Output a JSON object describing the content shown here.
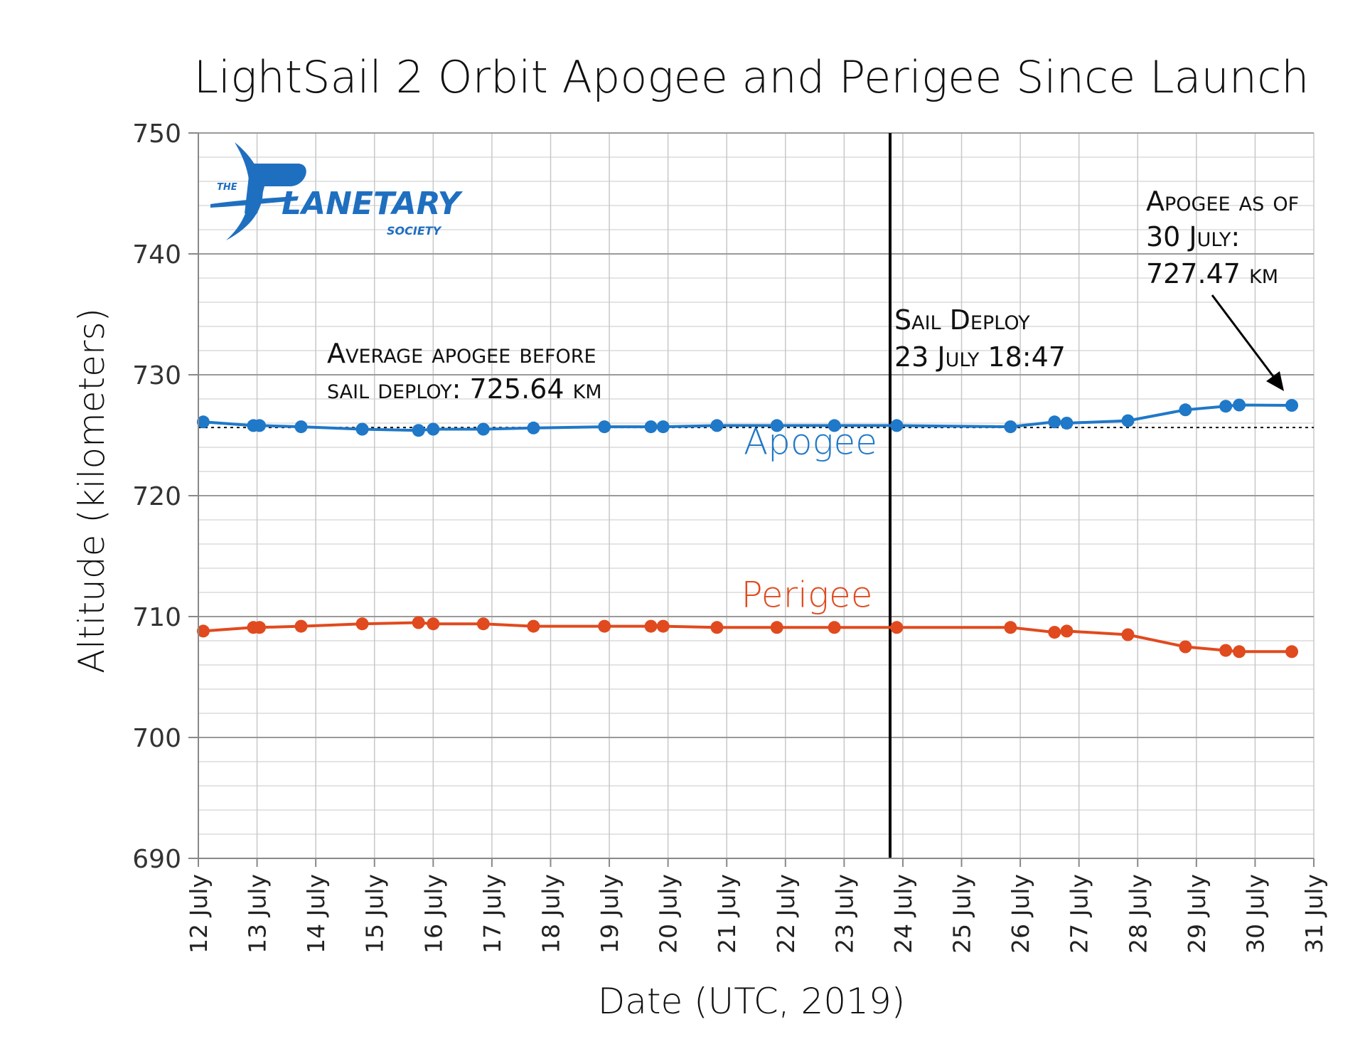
{
  "chart_data": {
    "type": "line",
    "title": "LightSail 2 Orbit Apogee and Perigee Since Launch",
    "xlabel": "Date (UTC, 2019)",
    "ylabel": "Altitude (kilometers)",
    "xlim": [
      "2019-07-12",
      "2019-07-31"
    ],
    "ylim": [
      690,
      750
    ],
    "y_ticks": [
      690,
      700,
      710,
      720,
      730,
      740,
      750
    ],
    "x_tick_labels": [
      "12 July",
      "13 July",
      "14 July",
      "15 July",
      "16 July",
      "17 July",
      "18 July",
      "19 July",
      "20 July",
      "21 July",
      "22 July",
      "23 July",
      "24 July",
      "25 July",
      "26 July",
      "27 July",
      "28 July",
      "29 July",
      "30 July",
      "31 July"
    ],
    "grid": true,
    "series": [
      {
        "name": "Apogee",
        "color": "#1f78c8",
        "x": [
          "2019-07-12 02:00",
          "2019-07-12 22:30",
          "2019-07-13 01:00",
          "2019-07-13 18:00",
          "2019-07-14 19:00",
          "2019-07-15 18:00",
          "2019-07-16 00:00",
          "2019-07-16 20:30",
          "2019-07-17 17:00",
          "2019-07-18 22:00",
          "2019-07-19 17:00",
          "2019-07-19 22:00",
          "2019-07-20 20:00",
          "2019-07-21 20:30",
          "2019-07-22 20:00",
          "2019-07-23 21:30",
          "2019-07-25 20:00",
          "2019-07-26 14:00",
          "2019-07-26 19:00",
          "2019-07-27 20:00",
          "2019-07-28 19:30",
          "2019-07-29 12:00",
          "2019-07-29 17:30",
          "2019-07-30 15:00"
        ],
        "values": [
          726.1,
          725.8,
          725.8,
          725.7,
          725.5,
          725.4,
          725.5,
          725.5,
          725.6,
          725.7,
          725.7,
          725.7,
          725.8,
          725.8,
          725.8,
          725.8,
          725.7,
          726.1,
          726.0,
          726.2,
          727.1,
          727.4,
          727.5,
          727.47
        ]
      },
      {
        "name": "Perigee",
        "color": "#e04a1e",
        "x": [
          "2019-07-12 02:00",
          "2019-07-12 22:30",
          "2019-07-13 01:00",
          "2019-07-13 18:00",
          "2019-07-14 19:00",
          "2019-07-15 18:00",
          "2019-07-16 00:00",
          "2019-07-16 20:30",
          "2019-07-17 17:00",
          "2019-07-18 22:00",
          "2019-07-19 17:00",
          "2019-07-19 22:00",
          "2019-07-20 20:00",
          "2019-07-21 20:30",
          "2019-07-22 20:00",
          "2019-07-23 21:30",
          "2019-07-25 20:00",
          "2019-07-26 14:00",
          "2019-07-26 19:00",
          "2019-07-27 20:00",
          "2019-07-28 19:30",
          "2019-07-29 12:00",
          "2019-07-29 17:30",
          "2019-07-30 15:00"
        ],
        "values": [
          708.8,
          709.1,
          709.1,
          709.2,
          709.4,
          709.5,
          709.4,
          709.4,
          709.2,
          709.2,
          709.2,
          709.2,
          709.1,
          709.1,
          709.1,
          709.1,
          709.1,
          708.7,
          708.8,
          708.5,
          707.5,
          707.2,
          707.1,
          707.1
        ]
      }
    ],
    "reference_lines": [
      {
        "type": "horizontal",
        "style": "dotted",
        "y": 725.64
      },
      {
        "type": "vertical",
        "style": "solid",
        "x": "2019-07-23 18:47"
      }
    ],
    "annotations": {
      "average": {
        "line1": "Average apogee before",
        "line2": "sail deploy: 725.64 km"
      },
      "deploy": {
        "line1": "Sail Deploy",
        "line2": "23 July 18:47"
      },
      "latest": {
        "line1": "Apogee as of",
        "line2": "30 July:",
        "line3": "727.47 km"
      }
    },
    "logo": {
      "the": "THE",
      "main": "LANETARY",
      "sub": "SOCIETY"
    }
  }
}
